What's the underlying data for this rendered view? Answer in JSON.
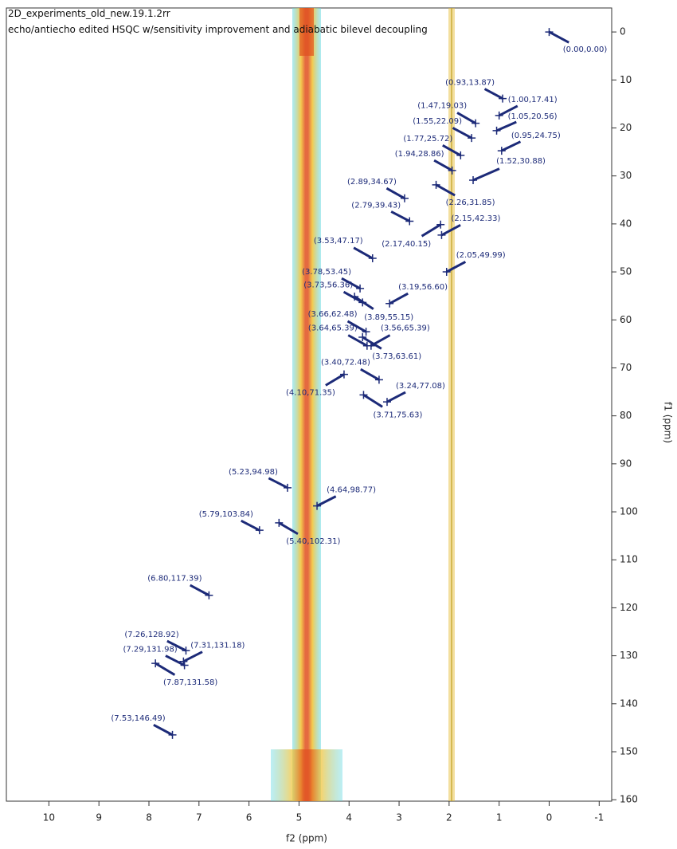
{
  "chart_data": {
    "type": "scatter",
    "title": "2D_experiments_old_new.19.1.2rr",
    "subtitle": "echo/antiecho edited HSQC w/sensitivity improvement and adiabatic bilevel decoupling",
    "x_label": "f2 (ppm)",
    "y_label": "f1 (ppm)",
    "x": [
      0.0,
      0.93,
      1.0,
      1.47,
      1.05,
      1.55,
      0.95,
      1.77,
      1.94,
      1.52,
      2.89,
      2.26,
      2.79,
      2.15,
      3.53,
      2.17,
      2.05,
      3.78,
      3.73,
      3.19,
      3.89,
      3.66,
      3.64,
      3.56,
      3.73,
      3.4,
      4.1,
      3.24,
      3.71,
      5.23,
      4.64,
      5.79,
      5.4,
      6.8,
      7.26,
      7.31,
      7.29,
      7.87,
      7.53
    ],
    "values": [
      0.0,
      13.87,
      17.41,
      19.03,
      20.56,
      22.09,
      24.75,
      25.72,
      28.86,
      30.88,
      34.67,
      31.85,
      39.43,
      42.33,
      47.17,
      40.15,
      49.99,
      53.45,
      56.36,
      56.6,
      55.15,
      62.48,
      65.39,
      65.39,
      63.61,
      72.48,
      71.35,
      77.08,
      75.63,
      94.98,
      98.77,
      103.84,
      102.31,
      117.39,
      128.92,
      131.18,
      131.98,
      131.58,
      146.49
    ],
    "value_labels": [
      "(0.00,0.00)",
      "(0.93,13.87)",
      "(1.00,17.41)",
      "(1.47,19.03)",
      "(1.05,20.56)",
      "(1.55,22.09)",
      "(0.95,24.75)",
      "(1.77,25.72)",
      "(1.94,28.86)",
      "(1.52,30.88)",
      "(2.89,34.67)",
      "(2.26,31.85)",
      "(2.79,39.43)",
      "(2.15,42.33)",
      "(3.53,47.17)",
      "(2.17,40.15)",
      "(2.05,49.99)",
      "(3.78,53.45)",
      "(3.73,56.36)",
      "(3.19,56.60)",
      "(3.89,55.15)",
      "(3.66,62.48)",
      "(3.64,65.39)",
      "(3.56,65.39)",
      "(3.73,63.61)",
      "(3.40,72.48)",
      "(4.10,71.35)",
      "(3.24,77.08)",
      "(3.71,75.63)",
      "(5.23,94.98)",
      "(4.64,98.77)",
      "(5.79,103.84)",
      "(5.40,102.31)",
      "(6.80,117.39)",
      "(7.26,128.92)",
      "(7.31,131.18)",
      "(7.29,131.98)",
      "(7.87,131.58)",
      "(7.53,146.49)"
    ],
    "color": "#1c2a78",
    "xlim": [
      10.85,
      -1.25
    ],
    "xticks": [
      10,
      9,
      8,
      7,
      6,
      5,
      4,
      3,
      2,
      1,
      0,
      -1
    ],
    "ylim": [
      160.3,
      -5
    ],
    "yticks": [
      0,
      10,
      20,
      30,
      40,
      50,
      60,
      70,
      80,
      90,
      100,
      110,
      120,
      130,
      140,
      150,
      160
    ]
  }
}
